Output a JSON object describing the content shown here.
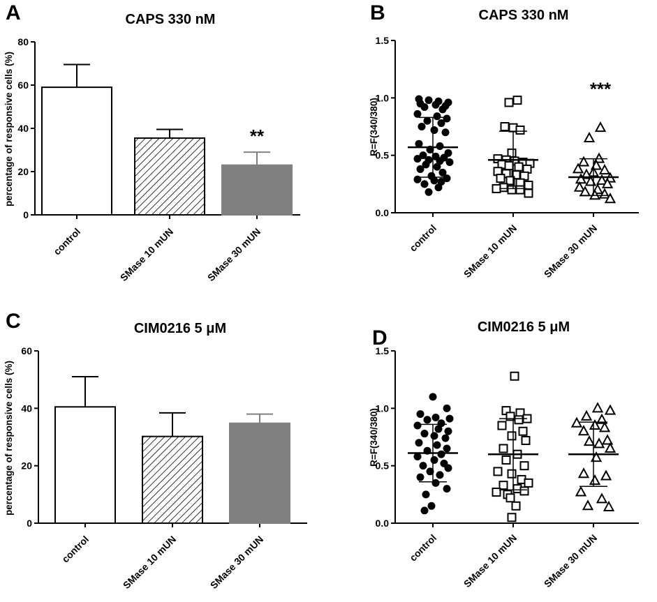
{
  "chart_data": [
    {
      "id": "A",
      "type": "bar",
      "panel_label": "A",
      "title": "CAPS 330 nM",
      "xlabel": "",
      "ylabel": "percentage of responsive cells (%)",
      "ylim": [
        0,
        80
      ],
      "yticks": [
        0,
        20,
        40,
        60,
        80
      ],
      "categories": [
        "control",
        "SMase 10 mUN",
        "SMase 30 mUN"
      ],
      "values": [
        59,
        35.5,
        23
      ],
      "errors": [
        10.5,
        4,
        6
      ],
      "fills": [
        "open",
        "hatched",
        "gray"
      ],
      "significance": [
        "",
        "",
        "**"
      ]
    },
    {
      "id": "B",
      "type": "scatter",
      "panel_label": "B",
      "title": "CAPS 330 nM",
      "xlabel": "",
      "ylabel": "R=F(340/380)",
      "ylim": [
        0,
        1.5
      ],
      "yticks": [
        "0.0",
        "0.5",
        "1.0",
        "1.5"
      ],
      "categories": [
        "control",
        "SMase 10 mUN",
        "SMase 30 mUN"
      ],
      "markers": [
        "filled-circle",
        "open-square",
        "open-triangle"
      ],
      "means": [
        0.57,
        0.46,
        0.31
      ],
      "sd": [
        0.26,
        0.25,
        0.16
      ],
      "significance": [
        "",
        "",
        "***"
      ],
      "series": [
        {
          "name": "control",
          "values": [
            0.99,
            0.98,
            0.97,
            0.96,
            0.95,
            0.94,
            0.93,
            0.92,
            0.9,
            0.86,
            0.84,
            0.82,
            0.8,
            0.78,
            0.75,
            0.72,
            0.7,
            0.6,
            0.58,
            0.55,
            0.52,
            0.5,
            0.49,
            0.48,
            0.47,
            0.46,
            0.45,
            0.44,
            0.42,
            0.4,
            0.38,
            0.35,
            0.32,
            0.3,
            0.29,
            0.28,
            0.27,
            0.25,
            0.22,
            0.18
          ],
          "jitter": [
            -20,
            -6,
            8,
            22,
            -18,
            4,
            18,
            -12,
            14,
            -22,
            6,
            20,
            -8,
            12,
            -16,
            2,
            18,
            -20,
            10,
            -4,
            22,
            -14,
            4,
            16,
            -22,
            -6,
            10,
            24,
            -10,
            6,
            -18,
            14,
            -2,
            20,
            -22,
            2,
            12,
            -12,
            8,
            -6
          ]
        },
        {
          "name": "SMase 10 mUN",
          "values": [
            0.98,
            0.96,
            0.75,
            0.74,
            0.72,
            0.52,
            0.47,
            0.46,
            0.45,
            0.44,
            0.43,
            0.42,
            0.41,
            0.4,
            0.38,
            0.36,
            0.34,
            0.33,
            0.32,
            0.3,
            0.28,
            0.26,
            0.24,
            0.22,
            0.21,
            0.2,
            0.2,
            0.17
          ],
          "jitter": [
            6,
            -6,
            -12,
            0,
            10,
            -2,
            -22,
            -10,
            2,
            14,
            24,
            -16,
            -6,
            8,
            20,
            -22,
            -10,
            4,
            16,
            -18,
            -4,
            10,
            22,
            -14,
            -24,
            -2,
            10,
            22
          ]
        },
        {
          "name": "SMase 30 mUN",
          "values": [
            0.74,
            0.65,
            0.47,
            0.44,
            0.41,
            0.38,
            0.37,
            0.35,
            0.33,
            0.3,
            0.29,
            0.28,
            0.27,
            0.25,
            0.22,
            0.2,
            0.18,
            0.16,
            0.15,
            0.12
          ],
          "jitter": [
            10,
            -6,
            8,
            -14,
            4,
            -22,
            16,
            0,
            -10,
            24,
            -18,
            12,
            -4,
            20,
            -20,
            6,
            -12,
            16,
            2,
            24
          ]
        }
      ]
    },
    {
      "id": "C",
      "type": "bar",
      "panel_label": "C",
      "title": "CIM0216 5 μM",
      "xlabel": "",
      "ylabel": "percentage of responsive cells (%)",
      "ylim": [
        0,
        60
      ],
      "yticks": [
        0,
        20,
        40,
        60
      ],
      "categories": [
        "control",
        "SMase 10 mUN",
        "SMase 30 mUN"
      ],
      "values": [
        40.5,
        30.2,
        34.8
      ],
      "errors": [
        10.5,
        8.2,
        3.2
      ],
      "fills": [
        "open",
        "hatched",
        "gray"
      ],
      "significance": [
        "",
        "",
        ""
      ]
    },
    {
      "id": "D",
      "type": "scatter",
      "panel_label": "D",
      "title": "CIM0216 5 μM",
      "xlabel": "",
      "ylabel": "R=F(340/380)",
      "ylim": [
        0,
        1.5
      ],
      "yticks": [
        "0.0",
        "0.5",
        "1.0",
        "1.5"
      ],
      "categories": [
        "control",
        "SMase 10 mUN",
        "SMase 30 mUN"
      ],
      "markers": [
        "filled-circle",
        "open-square",
        "open-triangle"
      ],
      "means": [
        0.61,
        0.6,
        0.6
      ],
      "sd": [
        0.25,
        0.31,
        0.28
      ],
      "significance": [
        "",
        "",
        ""
      ],
      "series": [
        {
          "name": "control",
          "values": [
            1.1,
            1.0,
            0.95,
            0.92,
            0.91,
            0.9,
            0.87,
            0.85,
            0.82,
            0.8,
            0.78,
            0.76,
            0.74,
            0.7,
            0.68,
            0.65,
            0.63,
            0.6,
            0.58,
            0.55,
            0.52,
            0.5,
            0.48,
            0.45,
            0.42,
            0.4,
            0.35,
            0.3,
            0.25,
            0.15,
            0.11
          ],
          "jitter": [
            0,
            20,
            -18,
            4,
            24,
            -8,
            12,
            -22,
            8,
            22,
            -12,
            2,
            18,
            -20,
            6,
            20,
            -8,
            12,
            -22,
            2,
            16,
            -14,
            22,
            -4,
            10,
            -18,
            4,
            20,
            -10,
            -2,
            -12
          ]
        },
        {
          "name": "SMase 10 mUN",
          "values": [
            1.28,
            0.98,
            0.96,
            0.93,
            0.91,
            0.9,
            0.85,
            0.8,
            0.76,
            0.72,
            0.65,
            0.6,
            0.55,
            0.5,
            0.45,
            0.43,
            0.38,
            0.35,
            0.33,
            0.3,
            0.28,
            0.27,
            0.25,
            0.22,
            0.15,
            0.05
          ],
          "jitter": [
            2,
            -10,
            10,
            -4,
            20,
            8,
            -16,
            14,
            -2,
            18,
            -14,
            6,
            -10,
            16,
            -22,
            -2,
            12,
            22,
            -14,
            6,
            16,
            -24,
            -8,
            -4,
            4,
            -2
          ]
        },
        {
          "name": "SMase 30 mUN",
          "values": [
            1.0,
            0.98,
            0.93,
            0.9,
            0.87,
            0.85,
            0.83,
            0.8,
            0.72,
            0.71,
            0.69,
            0.65,
            0.57,
            0.43,
            0.41,
            0.37,
            0.27,
            0.21,
            0.15,
            0.14
          ],
          "jitter": [
            6,
            24,
            -10,
            12,
            -24,
            2,
            16,
            -14,
            20,
            -6,
            8,
            24,
            4,
            -14,
            18,
            2,
            -18,
            12,
            -8,
            22
          ]
        }
      ]
    }
  ]
}
